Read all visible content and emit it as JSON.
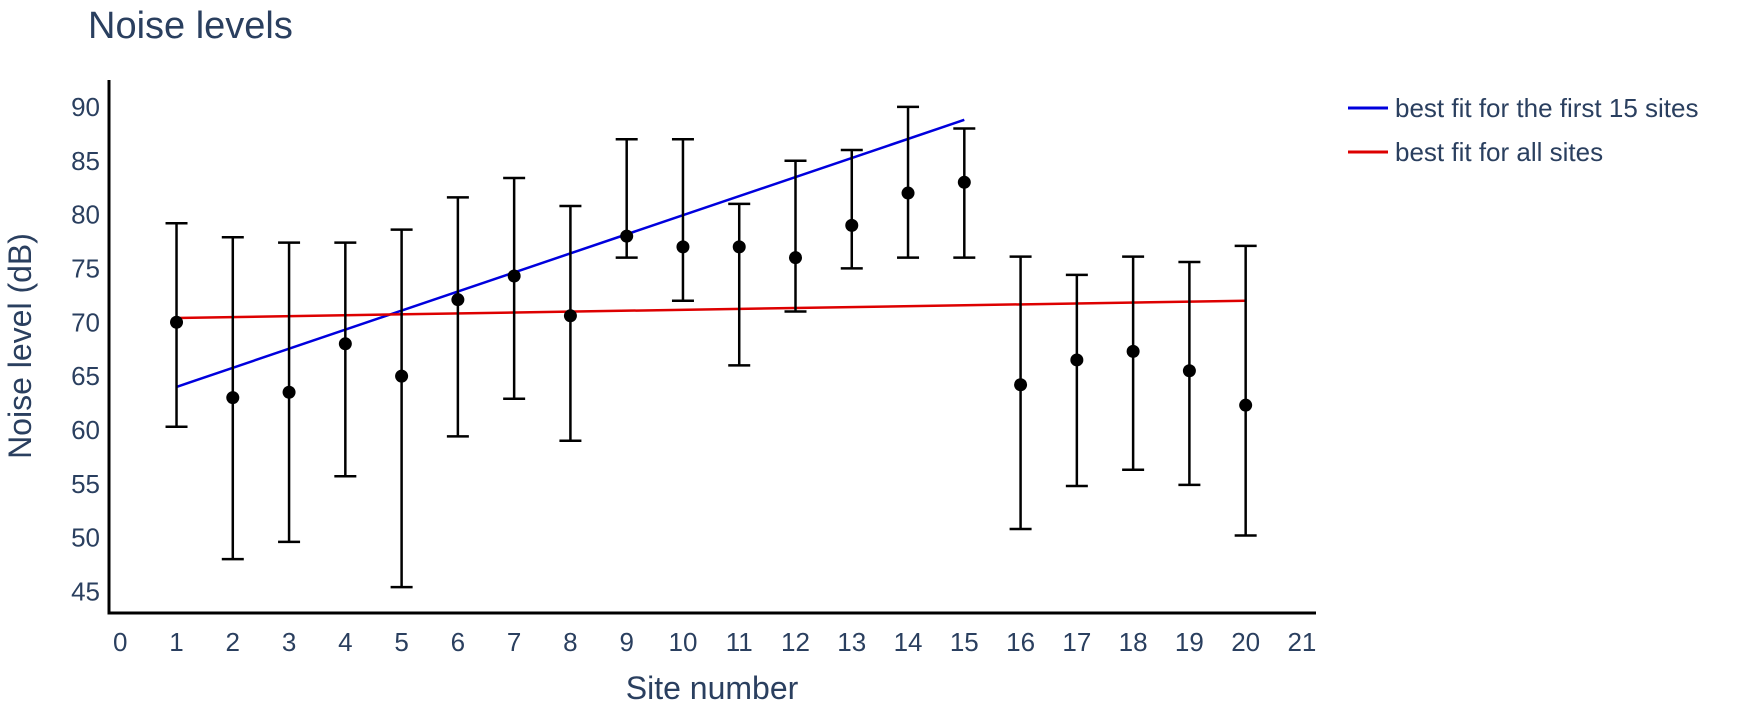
{
  "chart_data": {
    "type": "scatter",
    "title": "Noise levels",
    "xlabel": "Site number",
    "ylabel": "Noise level (dB)",
    "xlim": [
      -0.2,
      21.25
    ],
    "ylim": [
      43,
      92.5
    ],
    "x_ticks": [
      0,
      1,
      2,
      3,
      4,
      5,
      6,
      7,
      8,
      9,
      10,
      11,
      12,
      13,
      14,
      15,
      16,
      17,
      18,
      19,
      20,
      21
    ],
    "y_ticks": [
      45,
      50,
      55,
      60,
      65,
      70,
      75,
      80,
      85,
      90
    ],
    "grid": false,
    "legend_position": "top-right",
    "points": [
      {
        "x": 1,
        "y": 70.0,
        "lower": 60.3,
        "upper": 79.2
      },
      {
        "x": 2,
        "y": 63.0,
        "lower": 48.0,
        "upper": 77.9
      },
      {
        "x": 3,
        "y": 63.5,
        "lower": 49.6,
        "upper": 77.4
      },
      {
        "x": 4,
        "y": 68.0,
        "lower": 55.7,
        "upper": 77.4
      },
      {
        "x": 5,
        "y": 65.0,
        "lower": 45.4,
        "upper": 78.6
      },
      {
        "x": 6,
        "y": 72.1,
        "lower": 59.4,
        "upper": 81.6
      },
      {
        "x": 7,
        "y": 74.3,
        "lower": 62.9,
        "upper": 83.4
      },
      {
        "x": 8,
        "y": 70.6,
        "lower": 59.0,
        "upper": 80.8
      },
      {
        "x": 9,
        "y": 78.0,
        "lower": 76.0,
        "upper": 87.0
      },
      {
        "x": 10,
        "y": 77.0,
        "lower": 72.0,
        "upper": 87.0
      },
      {
        "x": 11,
        "y": 77.0,
        "lower": 66.0,
        "upper": 81.0
      },
      {
        "x": 12,
        "y": 76.0,
        "lower": 71.0,
        "upper": 85.0
      },
      {
        "x": 13,
        "y": 79.0,
        "lower": 75.0,
        "upper": 86.0
      },
      {
        "x": 14,
        "y": 82.0,
        "lower": 76.0,
        "upper": 90.0
      },
      {
        "x": 15,
        "y": 83.0,
        "lower": 76.0,
        "upper": 88.0
      },
      {
        "x": 16,
        "y": 64.2,
        "lower": 50.8,
        "upper": 76.1
      },
      {
        "x": 17,
        "y": 66.5,
        "lower": 54.8,
        "upper": 74.4
      },
      {
        "x": 18,
        "y": 67.3,
        "lower": 56.3,
        "upper": 76.1
      },
      {
        "x": 19,
        "y": 65.5,
        "lower": 54.9,
        "upper": 75.6
      },
      {
        "x": 20,
        "y": 62.3,
        "lower": 50.2,
        "upper": 77.1
      }
    ],
    "series": [
      {
        "name": "best fit for the first 15 sites",
        "color": "#0000dd",
        "x": [
          1,
          15
        ],
        "y": [
          64.0,
          88.8
        ]
      },
      {
        "name": "best fit for all sites",
        "color": "#dd0000",
        "x": [
          1,
          20
        ],
        "y": [
          70.4,
          72.0
        ]
      }
    ],
    "marker_color": "#000000",
    "text_color": "#2a3f5f"
  }
}
